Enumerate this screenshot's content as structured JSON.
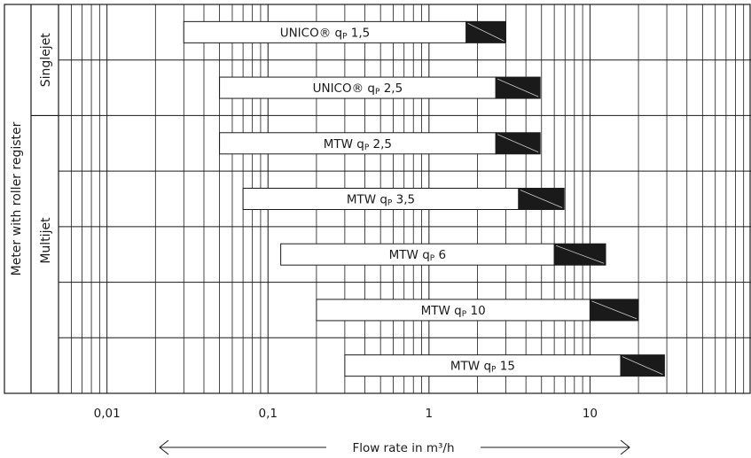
{
  "chart_data": {
    "type": "bar",
    "orientation": "horizontal-range",
    "x_scale": "log",
    "xlim": [
      0.005,
      100
    ],
    "xlabel": "Flow rate in m³/h",
    "x_ticks": [
      {
        "value": 0.01,
        "label": "0,01"
      },
      {
        "value": 0.1,
        "label": "0,1"
      },
      {
        "value": 1,
        "label": "1"
      },
      {
        "value": 10,
        "label": "10"
      }
    ],
    "ylabel": "Meter with roller register",
    "groups": [
      {
        "label": "Singlejet",
        "rows": 2
      },
      {
        "label": "Multijet",
        "rows": 5
      }
    ],
    "grid": true,
    "series": [
      {
        "label_main": "UNICO® q",
        "label_sub": "P",
        "label_val": " 1,5",
        "start": 0.03,
        "overload_start": 1.7,
        "end": 3.0
      },
      {
        "label_main": "UNICO® q",
        "label_sub": "P",
        "label_val": " 2,5",
        "start": 0.05,
        "overload_start": 2.6,
        "end": 4.9
      },
      {
        "label_main": "MTW q",
        "label_sub": "P",
        "label_val": " 2,5",
        "start": 0.05,
        "overload_start": 2.6,
        "end": 4.9
      },
      {
        "label_main": "MTW q",
        "label_sub": "P",
        "label_val": " 3,5",
        "start": 0.07,
        "overload_start": 3.6,
        "end": 6.9
      },
      {
        "label_main": "MTW q",
        "label_sub": "P",
        "label_val": " 6",
        "start": 0.12,
        "overload_start": 6.0,
        "end": 12.5
      },
      {
        "label_main": "MTW q",
        "label_sub": "P",
        "label_val": " 10",
        "start": 0.2,
        "overload_start": 10.0,
        "end": 20.0
      },
      {
        "label_main": "MTW q",
        "label_sub": "P",
        "label_val": " 15",
        "start": 0.3,
        "overload_start": 15.5,
        "end": 29.0
      }
    ],
    "colors": {
      "bar_fill": "#ffffff",
      "overload_fill": "#1a1a1a",
      "grid": "#1a1a1a",
      "text": "#1a1a1a"
    }
  }
}
